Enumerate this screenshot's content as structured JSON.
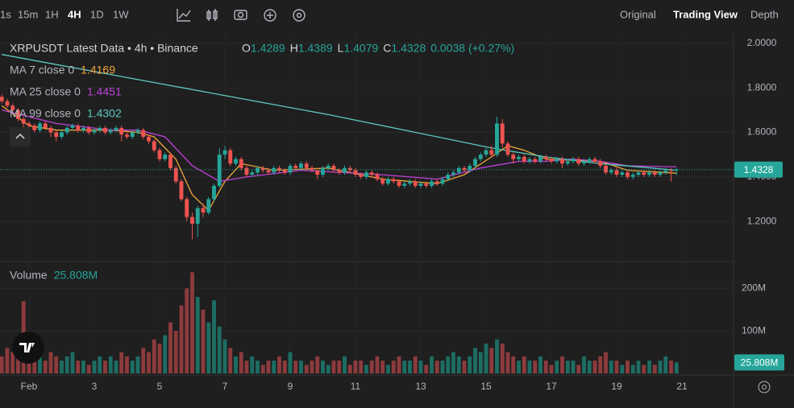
{
  "toolbar": {
    "intervals": [
      "1s",
      "15m",
      "1H",
      "4H",
      "1D",
      "1W"
    ],
    "active_interval": 3,
    "views": [
      "Original",
      "Trading View",
      "Depth"
    ],
    "active_view": 1
  },
  "chart_data": {
    "type": "candlestick",
    "title": "XRPUSDT Latest Data • 4h • Binance",
    "legend_ohlc": [
      {
        "key": "O",
        "text": "1.4289"
      },
      {
        "key": "H",
        "text": "1.4389"
      },
      {
        "key": "L",
        "text": "1.4079"
      },
      {
        "key": "C",
        "text": "1.4328"
      }
    ],
    "change": "0.0038 (+0.27%)",
    "up_color": "#26a69a",
    "down_color": "#ef5350",
    "volume_up_color": "#1d6d63",
    "volume_down_color": "#8d3b3d",
    "xlim": [
      -0.33,
      134.48
    ],
    "xticks": [
      {
        "value": 5,
        "label": "Feb"
      },
      {
        "value": 17,
        "label": "3"
      },
      {
        "value": 29,
        "label": "5"
      },
      {
        "value": 41,
        "label": "7"
      },
      {
        "value": 53,
        "label": "9"
      },
      {
        "value": 65,
        "label": "11"
      },
      {
        "value": 77,
        "label": "13"
      },
      {
        "value": 89,
        "label": "15"
      },
      {
        "value": 101,
        "label": "17"
      },
      {
        "value": 113,
        "label": "19"
      },
      {
        "value": 125,
        "label": "21"
      }
    ],
    "ylim": [
      1.02,
      2.05
    ],
    "yticks": [
      {
        "value": 1.2,
        "label": "1.2000"
      },
      {
        "value": 1.4,
        "label": "1.4000"
      },
      {
        "value": 1.6,
        "label": "1.6000"
      },
      {
        "value": 1.8,
        "label": "1.8000"
      },
      {
        "value": 2.0,
        "label": "2.0000"
      }
    ],
    "grid": true,
    "price_label": "1.4328",
    "ohlc": [
      [
        1.76,
        1.77,
        1.73,
        1.74
      ],
      [
        1.74,
        1.75,
        1.71,
        1.72
      ],
      [
        1.72,
        1.73,
        1.69,
        1.7
      ],
      [
        1.7,
        1.71,
        1.65,
        1.66
      ],
      [
        1.66,
        1.67,
        1.55,
        1.64
      ],
      [
        1.64,
        1.65,
        1.62,
        1.63
      ],
      [
        1.63,
        1.64,
        1.6,
        1.61
      ],
      [
        1.61,
        1.65,
        1.6,
        1.64
      ],
      [
        1.64,
        1.65,
        1.61,
        1.62
      ],
      [
        1.62,
        1.63,
        1.58,
        1.6
      ],
      [
        1.6,
        1.61,
        1.56,
        1.58
      ],
      [
        1.58,
        1.61,
        1.57,
        1.6
      ],
      [
        1.6,
        1.63,
        1.59,
        1.62
      ],
      [
        1.62,
        1.64,
        1.61,
        1.63
      ],
      [
        1.63,
        1.64,
        1.6,
        1.61
      ],
      [
        1.61,
        1.63,
        1.6,
        1.62
      ],
      [
        1.62,
        1.63,
        1.59,
        1.6
      ],
      [
        1.6,
        1.62,
        1.59,
        1.61
      ],
      [
        1.61,
        1.63,
        1.6,
        1.62
      ],
      [
        1.62,
        1.63,
        1.59,
        1.6
      ],
      [
        1.6,
        1.62,
        1.59,
        1.61
      ],
      [
        1.61,
        1.63,
        1.6,
        1.62
      ],
      [
        1.62,
        1.63,
        1.56,
        1.59
      ],
      [
        1.59,
        1.6,
        1.57,
        1.58
      ],
      [
        1.58,
        1.61,
        1.57,
        1.6
      ],
      [
        1.6,
        1.62,
        1.59,
        1.61
      ],
      [
        1.61,
        1.62,
        1.57,
        1.58
      ],
      [
        1.58,
        1.59,
        1.55,
        1.56
      ],
      [
        1.56,
        1.57,
        1.51,
        1.52
      ],
      [
        1.52,
        1.53,
        1.47,
        1.48
      ],
      [
        1.48,
        1.51,
        1.47,
        1.5
      ],
      [
        1.5,
        1.51,
        1.43,
        1.44
      ],
      [
        1.44,
        1.45,
        1.37,
        1.38
      ],
      [
        1.38,
        1.39,
        1.29,
        1.3
      ],
      [
        1.3,
        1.31,
        1.2,
        1.22
      ],
      [
        1.22,
        1.24,
        1.12,
        1.19
      ],
      [
        1.19,
        1.27,
        1.13,
        1.26
      ],
      [
        1.26,
        1.28,
        1.22,
        1.24
      ],
      [
        1.24,
        1.31,
        1.23,
        1.3
      ],
      [
        1.3,
        1.37,
        1.29,
        1.36
      ],
      [
        1.36,
        1.53,
        1.35,
        1.5
      ],
      [
        1.5,
        1.54,
        1.48,
        1.52
      ],
      [
        1.52,
        1.53,
        1.45,
        1.46
      ],
      [
        1.46,
        1.49,
        1.45,
        1.48
      ],
      [
        1.48,
        1.49,
        1.43,
        1.44
      ],
      [
        1.44,
        1.45,
        1.4,
        1.41
      ],
      [
        1.41,
        1.43,
        1.4,
        1.42
      ],
      [
        1.42,
        1.45,
        1.41,
        1.44
      ],
      [
        1.44,
        1.45,
        1.42,
        1.43
      ],
      [
        1.43,
        1.44,
        1.41,
        1.42
      ],
      [
        1.42,
        1.45,
        1.41,
        1.44
      ],
      [
        1.44,
        1.45,
        1.42,
        1.43
      ],
      [
        1.43,
        1.44,
        1.41,
        1.42
      ],
      [
        1.42,
        1.46,
        1.41,
        1.45
      ],
      [
        1.45,
        1.46,
        1.43,
        1.44
      ],
      [
        1.44,
        1.47,
        1.43,
        1.46
      ],
      [
        1.46,
        1.47,
        1.43,
        1.44
      ],
      [
        1.44,
        1.45,
        1.42,
        1.43
      ],
      [
        1.43,
        1.44,
        1.39,
        1.41
      ],
      [
        1.41,
        1.45,
        1.4,
        1.44
      ],
      [
        1.44,
        1.46,
        1.43,
        1.45
      ],
      [
        1.45,
        1.46,
        1.42,
        1.43
      ],
      [
        1.43,
        1.44,
        1.41,
        1.42
      ],
      [
        1.42,
        1.45,
        1.41,
        1.44
      ],
      [
        1.44,
        1.45,
        1.42,
        1.43
      ],
      [
        1.43,
        1.44,
        1.4,
        1.41
      ],
      [
        1.41,
        1.42,
        1.39,
        1.4
      ],
      [
        1.4,
        1.43,
        1.39,
        1.42
      ],
      [
        1.42,
        1.43,
        1.4,
        1.41
      ],
      [
        1.41,
        1.42,
        1.38,
        1.39
      ],
      [
        1.39,
        1.4,
        1.36,
        1.37
      ],
      [
        1.37,
        1.4,
        1.36,
        1.39
      ],
      [
        1.39,
        1.4,
        1.37,
        1.38
      ],
      [
        1.38,
        1.39,
        1.35,
        1.36
      ],
      [
        1.36,
        1.38,
        1.35,
        1.37
      ],
      [
        1.37,
        1.39,
        1.36,
        1.38
      ],
      [
        1.38,
        1.39,
        1.35,
        1.36
      ],
      [
        1.36,
        1.38,
        1.35,
        1.37
      ],
      [
        1.37,
        1.38,
        1.35,
        1.36
      ],
      [
        1.36,
        1.39,
        1.35,
        1.38
      ],
      [
        1.38,
        1.39,
        1.36,
        1.37
      ],
      [
        1.37,
        1.4,
        1.36,
        1.39
      ],
      [
        1.39,
        1.42,
        1.38,
        1.41
      ],
      [
        1.41,
        1.43,
        1.4,
        1.42
      ],
      [
        1.42,
        1.45,
        1.41,
        1.44
      ],
      [
        1.44,
        1.45,
        1.42,
        1.43
      ],
      [
        1.43,
        1.46,
        1.42,
        1.45
      ],
      [
        1.45,
        1.49,
        1.44,
        1.48
      ],
      [
        1.48,
        1.51,
        1.47,
        1.5
      ],
      [
        1.5,
        1.53,
        1.49,
        1.52
      ],
      [
        1.52,
        1.54,
        1.49,
        1.5
      ],
      [
        1.5,
        1.67,
        1.49,
        1.64
      ],
      [
        1.64,
        1.66,
        1.53,
        1.55
      ],
      [
        1.55,
        1.56,
        1.49,
        1.5
      ],
      [
        1.5,
        1.51,
        1.46,
        1.48
      ],
      [
        1.48,
        1.5,
        1.47,
        1.49
      ],
      [
        1.49,
        1.5,
        1.46,
        1.47
      ],
      [
        1.47,
        1.49,
        1.46,
        1.48
      ],
      [
        1.48,
        1.49,
        1.46,
        1.47
      ],
      [
        1.47,
        1.5,
        1.46,
        1.49
      ],
      [
        1.49,
        1.5,
        1.47,
        1.48
      ],
      [
        1.48,
        1.49,
        1.46,
        1.47
      ],
      [
        1.47,
        1.49,
        1.46,
        1.48
      ],
      [
        1.48,
        1.49,
        1.44,
        1.46
      ],
      [
        1.46,
        1.48,
        1.45,
        1.47
      ],
      [
        1.47,
        1.49,
        1.46,
        1.48
      ],
      [
        1.48,
        1.49,
        1.45,
        1.46
      ],
      [
        1.46,
        1.48,
        1.45,
        1.47
      ],
      [
        1.47,
        1.49,
        1.46,
        1.48
      ],
      [
        1.48,
        1.49,
        1.46,
        1.47
      ],
      [
        1.47,
        1.48,
        1.44,
        1.45
      ],
      [
        1.45,
        1.46,
        1.41,
        1.42
      ],
      [
        1.42,
        1.44,
        1.41,
        1.43
      ],
      [
        1.43,
        1.44,
        1.4,
        1.41
      ],
      [
        1.41,
        1.43,
        1.4,
        1.42
      ],
      [
        1.42,
        1.43,
        1.39,
        1.4
      ],
      [
        1.4,
        1.42,
        1.39,
        1.41
      ],
      [
        1.41,
        1.43,
        1.4,
        1.42
      ],
      [
        1.42,
        1.43,
        1.4,
        1.41
      ],
      [
        1.41,
        1.43,
        1.4,
        1.42
      ],
      [
        1.42,
        1.43,
        1.4,
        1.41
      ],
      [
        1.41,
        1.43,
        1.4,
        1.42
      ],
      [
        1.42,
        1.44,
        1.41,
        1.43
      ],
      [
        1.43,
        1.44,
        1.38,
        1.4289
      ],
      [
        1.4289,
        1.4389,
        1.4079,
        1.4328
      ]
    ],
    "ma": [
      {
        "name": "MA 7 close 0",
        "color": "#f0a53a",
        "x": [
          0,
          5,
          10,
          20,
          25,
          28,
          32,
          35,
          38,
          41,
          44,
          50,
          60,
          70,
          80,
          85,
          90,
          93,
          96,
          100,
          110,
          115,
          124
        ],
        "values": [
          1.72,
          1.63,
          1.61,
          1.61,
          1.6,
          1.58,
          1.48,
          1.32,
          1.25,
          1.38,
          1.46,
          1.43,
          1.44,
          1.39,
          1.37,
          1.41,
          1.49,
          1.54,
          1.52,
          1.48,
          1.47,
          1.43,
          1.4169
        ]
      },
      {
        "name": "MA 25 close 0",
        "color": "#c041d8",
        "x": [
          0,
          10,
          20,
          25,
          30,
          35,
          40,
          45,
          55,
          70,
          80,
          88,
          95,
          100,
          105,
          110,
          115,
          124
        ],
        "values": [
          1.7,
          1.64,
          1.61,
          1.61,
          1.58,
          1.45,
          1.38,
          1.4,
          1.43,
          1.41,
          1.39,
          1.44,
          1.47,
          1.47,
          1.48,
          1.47,
          1.45,
          1.4451
        ]
      },
      {
        "name": "MA 99 close 0",
        "color": "#5ec8c0",
        "x": [
          0,
          20,
          40,
          60,
          80,
          90,
          100,
          110,
          124
        ],
        "values": [
          1.95,
          1.86,
          1.77,
          1.68,
          1.58,
          1.53,
          1.49,
          1.46,
          1.4302
        ]
      }
    ],
    "volume": {
      "name": "Volume",
      "ylim": [
        0,
        250000000
      ],
      "yticks": [
        {
          "value": 100000000,
          "label": "100M"
        },
        {
          "value": 200000000,
          "label": "200M"
        }
      ],
      "values": [
        40000000.0,
        60000000.0,
        50000000.0,
        80000000.0,
        170000000.0,
        60000000.0,
        50000000.0,
        40000000.0,
        30000000.0,
        50000000.0,
        40000000.0,
        30000000.0,
        40000000.0,
        50000000.0,
        30000000.0,
        30000000.0,
        20000000.0,
        30000000.0,
        40000000.0,
        30000000.0,
        40000000.0,
        30000000.0,
        50000000.0,
        40000000.0,
        30000000.0,
        40000000.0,
        60000000.0,
        50000000.0,
        80000000.0,
        70000000.0,
        90000000.0,
        120000000.0,
        100000000.0,
        160000000.0,
        200000000.0,
        238000000.0,
        180000000.0,
        150000000.0,
        120000000.0,
        172000000.0,
        110000000.0,
        80000000.0,
        60000000.0,
        40000000.0,
        50000000.0,
        30000000.0,
        40000000.0,
        30000000.0,
        20000000.0,
        30000000.0,
        30000000.0,
        40000000.0,
        30000000.0,
        50000000.0,
        30000000.0,
        30000000.0,
        20000000.0,
        30000000.0,
        40000000.0,
        30000000.0,
        20000000.0,
        30000000.0,
        30000000.0,
        40000000.0,
        20000000.0,
        30000000.0,
        30000000.0,
        20000000.0,
        30000000.0,
        40000000.0,
        30000000.0,
        20000000.0,
        30000000.0,
        40000000.0,
        30000000.0,
        30000000.0,
        40000000.0,
        30000000.0,
        20000000.0,
        40000000.0,
        30000000.0,
        30000000.0,
        40000000.0,
        50000000.0,
        40000000.0,
        30000000.0,
        40000000.0,
        60000000.0,
        50000000.0,
        70000000.0,
        60000000.0,
        80000000.0,
        70000000.0,
        50000000.0,
        40000000.0,
        30000000.0,
        40000000.0,
        30000000.0,
        30000000.0,
        40000000.0,
        30000000.0,
        20000000.0,
        30000000.0,
        40000000.0,
        30000000.0,
        30000000.0,
        20000000.0,
        40000000.0,
        30000000.0,
        30000000.0,
        40000000.0,
        50000000.0,
        30000000.0,
        30000000.0,
        20000000.0,
        30000000.0,
        20000000.0,
        30000000.0,
        20000000.0,
        30000000.0,
        20000000.0,
        30000000.0,
        40000000.0,
        30000000.0,
        25808000.0
      ],
      "value_label": "25.808M"
    }
  }
}
